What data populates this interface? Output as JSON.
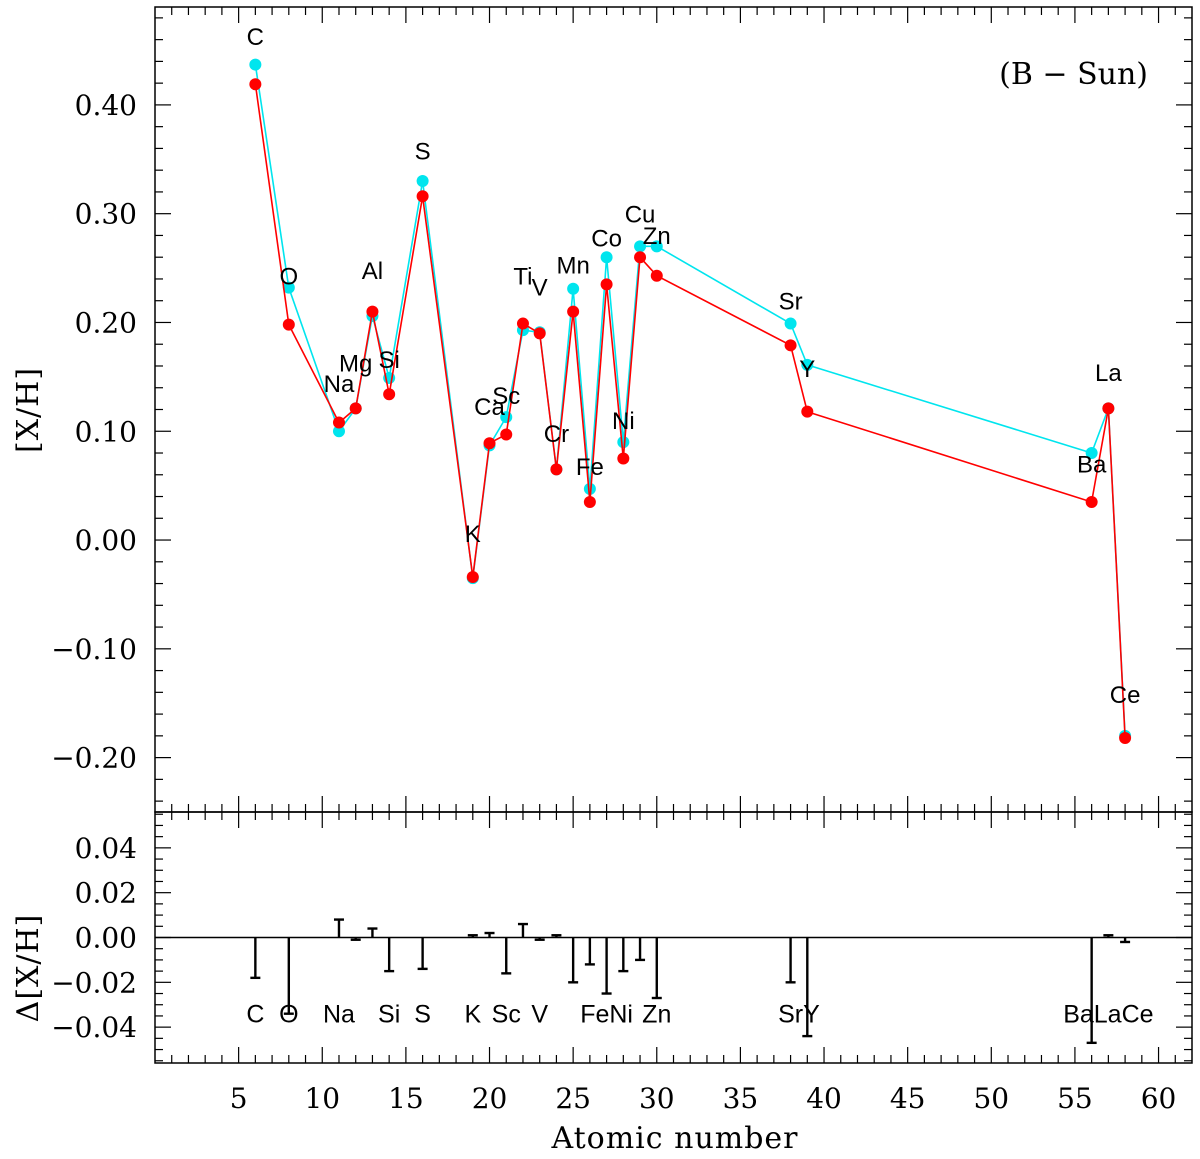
{
  "chart_data": [
    {
      "type": "line",
      "panel": "top",
      "annotation": "(B − Sun)",
      "xlabel": "",
      "ylabel": "[X/H]",
      "xlim": [
        0,
        62
      ],
      "ylim": [
        -0.25,
        0.49
      ],
      "yticks": [
        -0.2,
        -0.1,
        0.0,
        0.1,
        0.2,
        0.3,
        0.4
      ],
      "ytick_labels": [
        "−0.20",
        "−0.10",
        "0.00",
        "0.10",
        "0.20",
        "0.30",
        "0.40"
      ],
      "series": [
        {
          "name": "cyan",
          "color": "#00e5ee",
          "points": [
            {
              "el": "C",
              "x": 6,
              "y": 0.437
            },
            {
              "el": "O",
              "x": 8,
              "y": 0.232
            },
            {
              "el": "Na",
              "x": 11,
              "y": 0.1
            },
            {
              "el": "Mg",
              "x": 12,
              "y": 0.121
            },
            {
              "el": "Al",
              "x": 13,
              "y": 0.206
            },
            {
              "el": "Si",
              "x": 14,
              "y": 0.149
            },
            {
              "el": "S",
              "x": 16,
              "y": 0.33
            },
            {
              "el": "K",
              "x": 19,
              "y": -0.035
            },
            {
              "el": "Ca",
              "x": 20,
              "y": 0.087
            },
            {
              "el": "Sc",
              "x": 21,
              "y": 0.113
            },
            {
              "el": "Ti",
              "x": 22,
              "y": 0.193
            },
            {
              "el": "V",
              "x": 23,
              "y": 0.191
            },
            {
              "el": "Cr",
              "x": 24,
              "y": 0.065
            },
            {
              "el": "Mn",
              "x": 25,
              "y": 0.231
            },
            {
              "el": "Fe",
              "x": 26,
              "y": 0.047
            },
            {
              "el": "Co",
              "x": 27,
              "y": 0.26
            },
            {
              "el": "Ni",
              "x": 28,
              "y": 0.09
            },
            {
              "el": "Cu",
              "x": 29,
              "y": 0.27
            },
            {
              "el": "Zn",
              "x": 30,
              "y": 0.27
            },
            {
              "el": "Sr",
              "x": 38,
              "y": 0.199
            },
            {
              "el": "Y",
              "x": 39,
              "y": 0.161
            },
            {
              "el": "Ba",
              "x": 56,
              "y": 0.08
            },
            {
              "el": "La",
              "x": 57,
              "y": 0.121
            },
            {
              "el": "Ce",
              "x": 58,
              "y": -0.18
            }
          ]
        },
        {
          "name": "red",
          "color": "#ff0000",
          "points": [
            {
              "el": "C",
              "x": 6,
              "y": 0.419
            },
            {
              "el": "O",
              "x": 8,
              "y": 0.198
            },
            {
              "el": "Na",
              "x": 11,
              "y": 0.108
            },
            {
              "el": "Mg",
              "x": 12,
              "y": 0.121
            },
            {
              "el": "Al",
              "x": 13,
              "y": 0.21
            },
            {
              "el": "Si",
              "x": 14,
              "y": 0.134
            },
            {
              "el": "S",
              "x": 16,
              "y": 0.316
            },
            {
              "el": "K",
              "x": 19,
              "y": -0.034
            },
            {
              "el": "Ca",
              "x": 20,
              "y": 0.089
            },
            {
              "el": "Sc",
              "x": 21,
              "y": 0.097
            },
            {
              "el": "Ti",
              "x": 22,
              "y": 0.199
            },
            {
              "el": "V",
              "x": 23,
              "y": 0.19
            },
            {
              "el": "Cr",
              "x": 24,
              "y": 0.065
            },
            {
              "el": "Mn",
              "x": 25,
              "y": 0.21
            },
            {
              "el": "Fe",
              "x": 26,
              "y": 0.035
            },
            {
              "el": "Co",
              "x": 27,
              "y": 0.235
            },
            {
              "el": "Ni",
              "x": 28,
              "y": 0.075
            },
            {
              "el": "Cu",
              "x": 29,
              "y": 0.26
            },
            {
              "el": "Zn",
              "x": 30,
              "y": 0.243
            },
            {
              "el": "Sr",
              "x": 38,
              "y": 0.179
            },
            {
              "el": "Y",
              "x": 39,
              "y": 0.118
            },
            {
              "el": "Ba",
              "x": 56,
              "y": 0.035
            },
            {
              "el": "La",
              "x": 57,
              "y": 0.121
            },
            {
              "el": "Ce",
              "x": 58,
              "y": -0.182
            }
          ]
        }
      ],
      "labels": [
        {
          "text": "C",
          "x": 6,
          "y": 0.455
        },
        {
          "text": "O",
          "x": 8,
          "y": 0.235
        },
        {
          "text": "Na",
          "x": 11,
          "y": 0.136
        },
        {
          "text": "Mg",
          "x": 12,
          "y": 0.155
        },
        {
          "text": "Al",
          "x": 13,
          "y": 0.24
        },
        {
          "text": "Si",
          "x": 14,
          "y": 0.158
        },
        {
          "text": "S",
          "x": 16,
          "y": 0.35
        },
        {
          "text": "K",
          "x": 19,
          "y": -0.002
        },
        {
          "text": "Ca",
          "x": 20,
          "y": 0.115
        },
        {
          "text": "Sc",
          "x": 21,
          "y": 0.125
        },
        {
          "text": "Ti",
          "x": 22,
          "y": 0.235
        },
        {
          "text": "V",
          "x": 23,
          "y": 0.225
        },
        {
          "text": "Cr",
          "x": 24,
          "y": 0.09
        },
        {
          "text": "Mn",
          "x": 25,
          "y": 0.245
        },
        {
          "text": "Fe",
          "x": 26,
          "y": 0.06
        },
        {
          "text": "Co",
          "x": 27,
          "y": 0.27
        },
        {
          "text": "Ni",
          "x": 28,
          "y": 0.102
        },
        {
          "text": "Cu",
          "x": 29,
          "y": 0.292
        },
        {
          "text": "Zn",
          "x": 30,
          "y": 0.272
        },
        {
          "text": "Sr",
          "x": 38,
          "y": 0.212
        },
        {
          "text": "Y",
          "x": 39,
          "y": 0.15
        },
        {
          "text": "Ba",
          "x": 56,
          "y": 0.062
        },
        {
          "text": "La",
          "x": 57,
          "y": 0.146
        },
        {
          "text": "Ce",
          "x": 58,
          "y": -0.15
        }
      ]
    },
    {
      "type": "errorbar",
      "panel": "bottom",
      "xlabel": "Atomic number",
      "ylabel": "Δ[X/H]",
      "xlim": [
        0,
        62
      ],
      "ylim": [
        -0.056,
        0.056
      ],
      "xticks": [
        5,
        10,
        15,
        20,
        25,
        30,
        35,
        40,
        45,
        50,
        55,
        60
      ],
      "xtick_labels": [
        "5",
        "10",
        "15",
        "20",
        "25",
        "30",
        "35",
        "40",
        "45",
        "50",
        "55",
        "60"
      ],
      "yticks": [
        -0.04,
        -0.02,
        0.0,
        0.02,
        0.04
      ],
      "ytick_labels": [
        "−0.04",
        "−0.02",
        "0.00",
        "0.02",
        "0.04"
      ],
      "reference_line": 0.0,
      "bars": [
        {
          "el": "C",
          "x": 6,
          "value": -0.018
        },
        {
          "el": "O",
          "x": 8,
          "value": -0.034
        },
        {
          "el": "Na",
          "x": 11,
          "value": 0.008
        },
        {
          "el": "Mg",
          "x": 12,
          "value": -0.001
        },
        {
          "el": "Al",
          "x": 13,
          "value": 0.004
        },
        {
          "el": "Si",
          "x": 14,
          "value": -0.015
        },
        {
          "el": "S",
          "x": 16,
          "value": -0.014
        },
        {
          "el": "K",
          "x": 19,
          "value": 0.001
        },
        {
          "el": "Ca",
          "x": 20,
          "value": 0.002
        },
        {
          "el": "Sc",
          "x": 21,
          "value": -0.016
        },
        {
          "el": "Ti",
          "x": 22,
          "value": 0.006
        },
        {
          "el": "V",
          "x": 23,
          "value": -0.001
        },
        {
          "el": "Cr",
          "x": 24,
          "value": 0.001
        },
        {
          "el": "Mn",
          "x": 25,
          "value": -0.02
        },
        {
          "el": "Fe",
          "x": 26,
          "value": -0.012
        },
        {
          "el": "Co",
          "x": 27,
          "value": -0.025
        },
        {
          "el": "Ni",
          "x": 28,
          "value": -0.015
        },
        {
          "el": "Cu",
          "x": 29,
          "value": -0.01
        },
        {
          "el": "Zn",
          "x": 30,
          "value": -0.027
        },
        {
          "el": "Sr",
          "x": 38,
          "value": -0.02
        },
        {
          "el": "Y",
          "x": 39,
          "value": -0.044
        },
        {
          "el": "Ba",
          "x": 56,
          "value": -0.047
        },
        {
          "el": "La",
          "x": 57,
          "value": 0.001
        },
        {
          "el": "Ce",
          "x": 58,
          "value": -0.002
        }
      ],
      "labels": [
        {
          "text": "C",
          "x": 6
        },
        {
          "text": "O",
          "x": 8
        },
        {
          "text": "Na",
          "x": 11
        },
        {
          "text": "Si",
          "x": 14
        },
        {
          "text": "S",
          "x": 16
        },
        {
          "text": "K",
          "x": 19
        },
        {
          "text": "Sc",
          "x": 21
        },
        {
          "text": "V",
          "x": 23
        },
        {
          "text": "FeNi",
          "x": 27
        },
        {
          "text": "Zn",
          "x": 30
        },
        {
          "text": "SrY",
          "x": 38.5
        },
        {
          "text": "BaLaCe",
          "x": 57
        }
      ],
      "labels_y": -0.034
    }
  ]
}
